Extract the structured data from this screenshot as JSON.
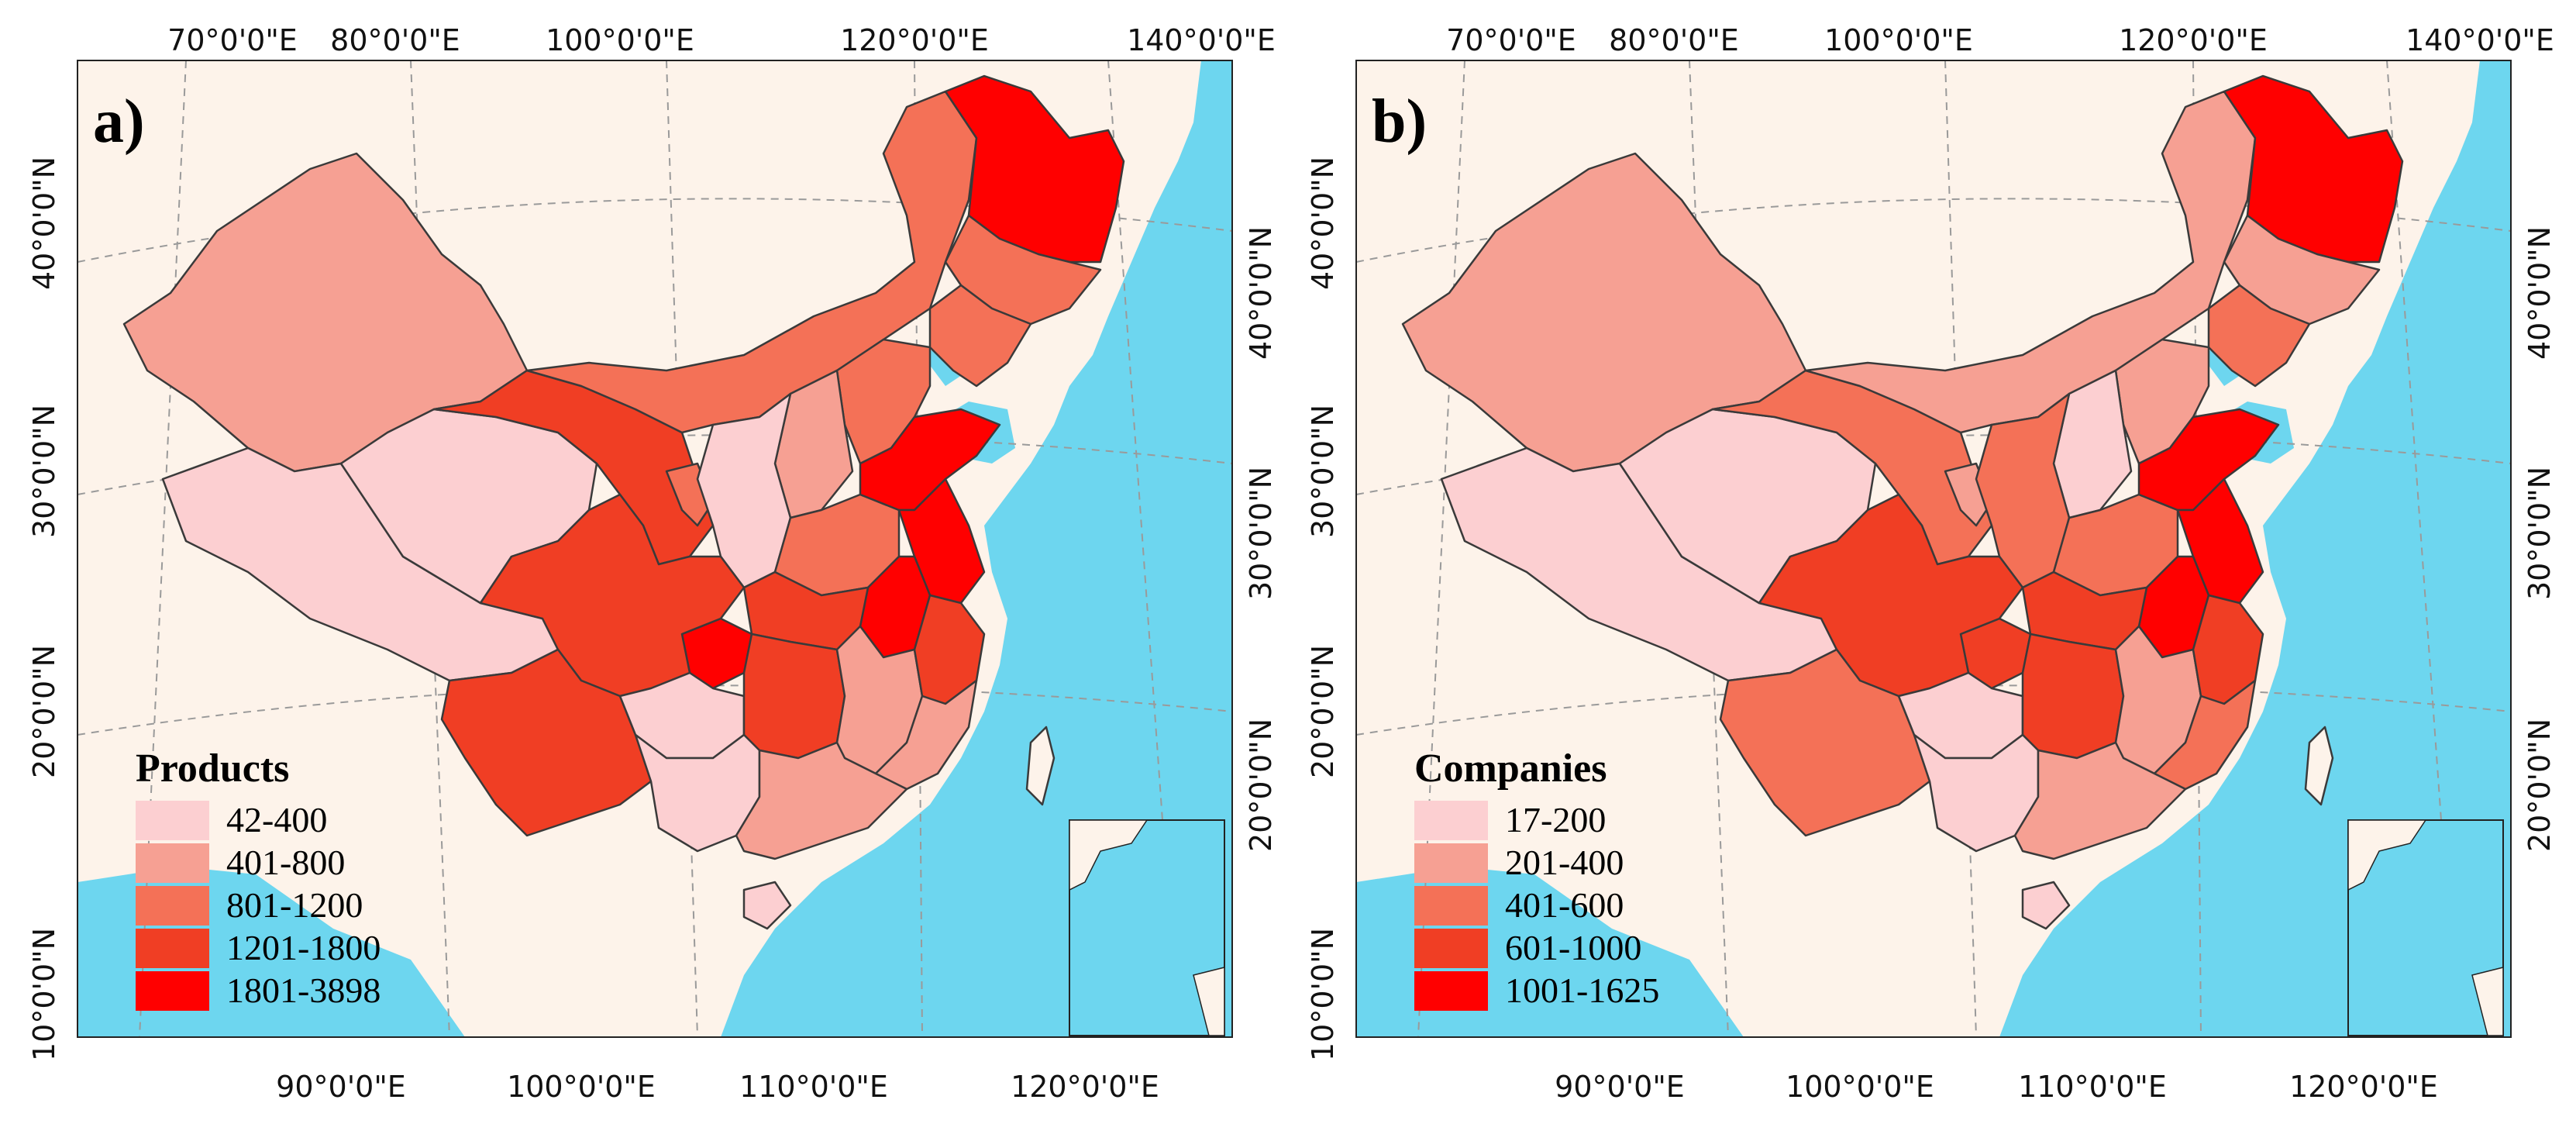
{
  "colors": {
    "land": "#fdf3ea",
    "sea": "#6dd6ef",
    "grid": "#9a9a9a",
    "border": "#3a3a3a",
    "class1": "#fccfd1",
    "class2": "#f6a093",
    "class3": "#f47157",
    "class4": "#f03e24",
    "class5": "#ff0000"
  },
  "panels": [
    {
      "label": "a)",
      "legend_title": "Products",
      "legend_classes": [
        "42-400",
        "401-800",
        "801-1200",
        "1201-1800",
        "1801-3898"
      ],
      "top_ticks": [
        "70°0'0\"E",
        "80°0'0\"E",
        "100°0'0\"E",
        "120°0'0\"E",
        "140°0'0\"E"
      ],
      "bottom_ticks": [
        "90°0'0\"E",
        "100°0'0\"E",
        "110°0'0\"E",
        "120°0'0\"E"
      ],
      "left_ticks": [
        "40°0'0\"N",
        "30°0'0\"N",
        "20°0'0\"N",
        "10°0'0\"N"
      ],
      "right_ticks": [
        "40°0'0\"N",
        "30°0'0\"N",
        "20°0'0\"N"
      ],
      "provinces": {
        "xinjiang": 2,
        "tibet": 1,
        "qinghai": 1,
        "gansu": 4,
        "ningxia": 3,
        "inner_mongolia": 3,
        "heilongjiang": 5,
        "jilin": 3,
        "liaoning": 3,
        "hebei": 3,
        "shanxi": 2,
        "shaanxi": 1,
        "sichuan": 4,
        "chongqing": 5,
        "yunnan": 4,
        "guizhou": 1,
        "guangxi": 1,
        "guangdong": 2,
        "hunan": 4,
        "hubei": 4,
        "henan": 3,
        "shandong": 5,
        "jiangsu": 5,
        "anhui": 5,
        "zhejiang": 4,
        "jiangxi": 2,
        "fujian": 2,
        "hainan": 1,
        "beijing": 1,
        "taiwan": 0
      }
    },
    {
      "label": "b)",
      "legend_title": "Companies",
      "legend_classes": [
        "17-200",
        "201-400",
        "401-600",
        "601-1000",
        "1001-1625"
      ],
      "top_ticks": [
        "70°0'0\"E",
        "80°0'0\"E",
        "100°0'0\"E",
        "120°0'0\"E",
        "140°0'0\"E"
      ],
      "bottom_ticks": [
        "90°0'0\"E",
        "100°0'0\"E",
        "110°0'0\"E",
        "120°0'0\"E"
      ],
      "left_ticks": [
        "40°0'0\"N",
        "30°0'0\"N",
        "20°0'0\"N",
        "10°0'0\"N"
      ],
      "right_ticks": [
        "40°0'0\"N",
        "30°0'0\"N",
        "20°0'0\"N"
      ],
      "provinces": {
        "xinjiang": 2,
        "tibet": 1,
        "qinghai": 1,
        "gansu": 3,
        "ningxia": 2,
        "inner_mongolia": 2,
        "heilongjiang": 5,
        "jilin": 2,
        "liaoning": 3,
        "hebei": 2,
        "shanxi": 1,
        "shaanxi": 3,
        "sichuan": 4,
        "chongqing": 4,
        "yunnan": 3,
        "guizhou": 1,
        "guangxi": 1,
        "guangdong": 2,
        "hunan": 4,
        "hubei": 4,
        "henan": 3,
        "shandong": 5,
        "jiangsu": 5,
        "anhui": 5,
        "zhejiang": 4,
        "jiangxi": 2,
        "fujian": 3,
        "hainan": 1,
        "beijing": 1,
        "taiwan": 0
      }
    }
  ]
}
